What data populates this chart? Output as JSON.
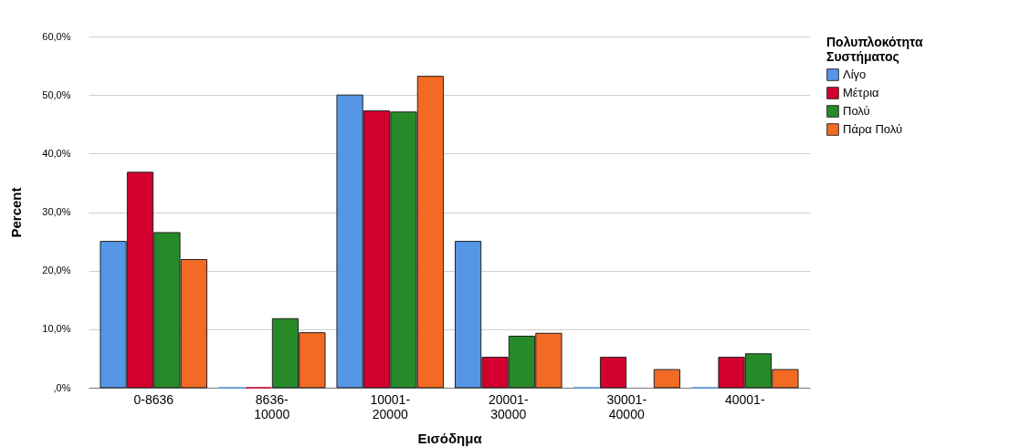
{
  "chart_data": {
    "type": "bar",
    "xlabel": "Εισόδημα",
    "ylabel": "Percent",
    "legend_title": "Πολυπλοκότητα Συστήματος",
    "categories": [
      "0-8636",
      "8636-\n10000",
      "10001-\n20000",
      "20001-\n30000",
      "30001-\n40000",
      "40001-"
    ],
    "series": [
      {
        "name": "Λίγο",
        "color": "#5596e6",
        "values": [
          25.0,
          0,
          50.0,
          25.0,
          0,
          0
        ]
      },
      {
        "name": "Μέτρια",
        "color": "#d2002f",
        "values": [
          36.8,
          0,
          47.3,
          5.2,
          5.2,
          5.2
        ]
      },
      {
        "name": "Πολύ",
        "color": "#268a28",
        "values": [
          26.5,
          11.8,
          47.1,
          8.8,
          null,
          5.8
        ]
      },
      {
        "name": "Πάρα Πολύ",
        "color": "#f26a24",
        "values": [
          21.9,
          9.4,
          53.2,
          9.3,
          3.1,
          3.1
        ]
      }
    ],
    "ylim": [
      0,
      60
    ],
    "yticks": [
      {
        "value": 0,
        "label": ",0%"
      },
      {
        "value": 10,
        "label": "10,0%"
      },
      {
        "value": 20,
        "label": "20,0%"
      },
      {
        "value": 30,
        "label": "30,0%"
      },
      {
        "value": 40,
        "label": "40,0%"
      },
      {
        "value": 50,
        "label": "50,0%"
      },
      {
        "value": 60,
        "label": "60,0%"
      }
    ],
    "grid": "y",
    "legend": "top right"
  }
}
